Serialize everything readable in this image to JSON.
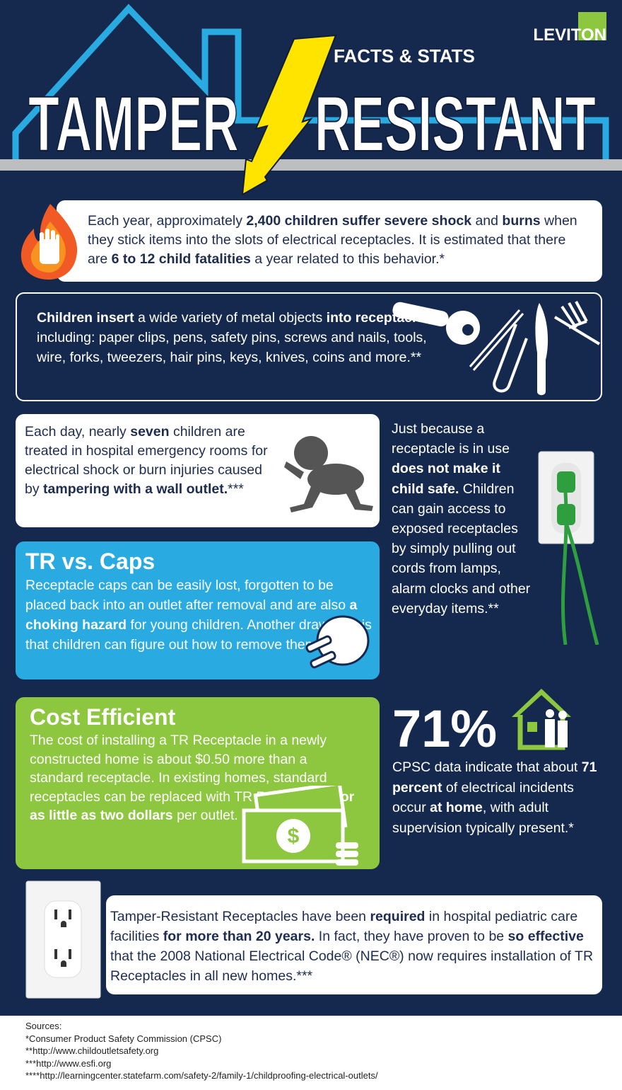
{
  "header": {
    "logo": "LEVITON",
    "subtitle": "FACTS & STATS",
    "title_left": "TAMPER",
    "title_right": "RESISTANT"
  },
  "colors": {
    "navy": "#15294f",
    "blue": "#29abe2",
    "green": "#8dc63f",
    "yellow": "#ffe400",
    "gray": "#bcbec0"
  },
  "facts": {
    "shock": [
      "Each year, approximately ",
      "2,400 children suffer severe shock",
      " and ",
      "burns",
      " when they stick items into the slots of electrical receptacles. It is estimated that there are ",
      "6 to 12 child fatalities",
      " a year related to this behavior.*"
    ],
    "objects": [
      "Children insert",
      " a wide variety of metal objects ",
      "into receptacles",
      ", including: paper clips, pens, safety pins, screws and nails, tools, wire, forks, tweezers, hair pins, keys, knives, coins and more.**"
    ],
    "daily": [
      "Each day, nearly ",
      "seven",
      " children are treated in hospital emergency rooms for electrical shock or burn injuries caused by ",
      "tampering with a wall outlet.",
      "***"
    ],
    "in_use": [
      "Just because a receptacle is in use ",
      "does not make it child safe.",
      " Children can gain access to exposed receptacles by simply pulling out cords from lamps, alarm clocks and other everyday items.**"
    ],
    "caps": {
      "title": "TR vs. Caps",
      "body": [
        "Receptacle caps can be easily lost, forgotten to be placed back into an outlet after removal and are also ",
        "a choking hazard",
        " for young children. Another drawback is that children can figure out how to remove them.****"
      ]
    },
    "cost": {
      "title": "Cost Efficient",
      "body": [
        "The cost of installing a TR Receptacle in a newly constructed home is about $0.50 more than a standard receptacle. In existing homes, standard receptacles can be replaced with TR Receptacles ",
        "for as little as two dollars",
        " per outlet. ***"
      ]
    },
    "home": {
      "stat": "71%",
      "body": [
        "CPSC data indicate that about ",
        "71 percent",
        " of electrical incidents occur ",
        "at home",
        ", with adult supervision typically present.*"
      ]
    },
    "required": [
      "Tamper-Resistant Receptacles have been ",
      "required",
      " in hospital pediatric care facilities ",
      "for more than 20 years.",
      " In fact, they have proven to be ",
      "so effective",
      " that the 2008 National Electrical Code® (NEC®) now requires installation of TR Receptacles in all new homes.***"
    ]
  },
  "sources": {
    "label": "Sources:",
    "items": [
      "*Consumer Product Safety Commission (CPSC)",
      "**http://www.childoutletsafety.org",
      "***http://www.esfi.org",
      "****http://learningcenter.statefarm.com/safety-2/family-1/childproofing-electrical-outlets/"
    ]
  }
}
